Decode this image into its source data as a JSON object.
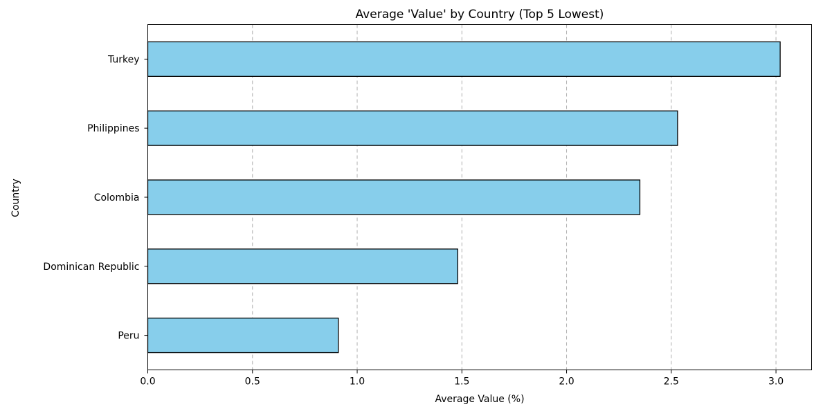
{
  "chart_data": {
    "type": "bar",
    "orientation": "horizontal",
    "title": "Average 'Value' by Country (Top 5 Lowest)",
    "xlabel": "Average Value (%)",
    "ylabel": "Country",
    "categories": [
      "Turkey",
      "Philippines",
      "Colombia",
      "Dominican Republic",
      "Peru"
    ],
    "values": [
      3.02,
      2.53,
      2.35,
      1.48,
      0.91
    ],
    "xlim": [
      0,
      3.17
    ],
    "xticks": [
      0.0,
      0.5,
      1.0,
      1.5,
      2.0,
      2.5,
      3.0
    ],
    "xtick_labels": [
      "0.0",
      "0.5",
      "1.0",
      "1.5",
      "2.0",
      "2.5",
      "3.0"
    ],
    "grid": "x-axis, dashed",
    "bar_color": "#87ceeb",
    "edge_color": "#000000",
    "legend": "none"
  }
}
